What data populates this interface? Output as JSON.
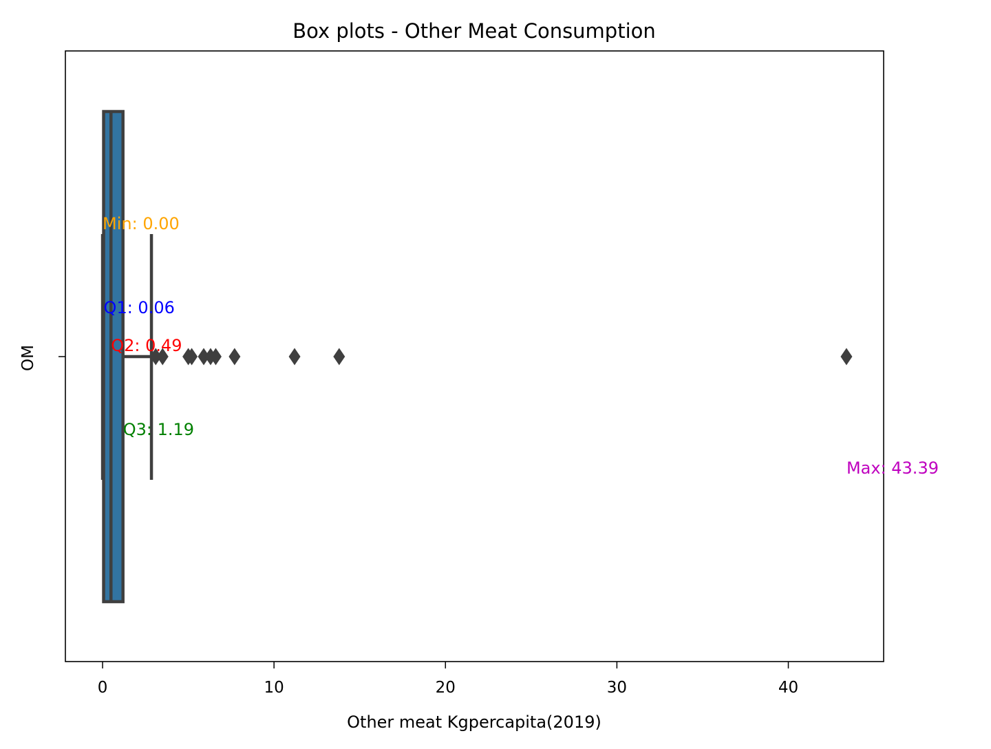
{
  "chart_data": {
    "type": "box",
    "title": "Box plots - Other Meat Consumption",
    "xlabel": "Other meat Kgpercapita(2019)",
    "ylabel": "OM",
    "xlim": [
      -2.17,
      45.56
    ],
    "xticks": [
      0,
      10,
      20,
      30,
      40
    ],
    "category": "OM",
    "box": {
      "min": 0.0,
      "q1": 0.06,
      "median": 0.49,
      "q3": 1.19,
      "whisker_low": 0.0,
      "whisker_high": 2.85,
      "max": 43.39,
      "color": "#3274a1"
    },
    "outliers": [
      3.1,
      3.5,
      5.0,
      5.2,
      5.9,
      6.3,
      6.6,
      7.7,
      11.2,
      13.8,
      43.39
    ],
    "annotations": [
      {
        "key": "min",
        "label": "Min: 0.00",
        "value": 0.0,
        "color": "#ffa500"
      },
      {
        "key": "q1",
        "label": "Q1: 0.06",
        "value": 0.06,
        "color": "#0000ff"
      },
      {
        "key": "q2",
        "label": "Q2: 0.49",
        "value": 0.49,
        "color": "#ff0000"
      },
      {
        "key": "q3",
        "label": "Q3: 1.19",
        "value": 1.19,
        "color": "#008000"
      },
      {
        "key": "max",
        "label": "Max: 43.39",
        "value": 43.39,
        "color": "#bf00bf"
      }
    ],
    "grid": false,
    "legend": "none"
  }
}
